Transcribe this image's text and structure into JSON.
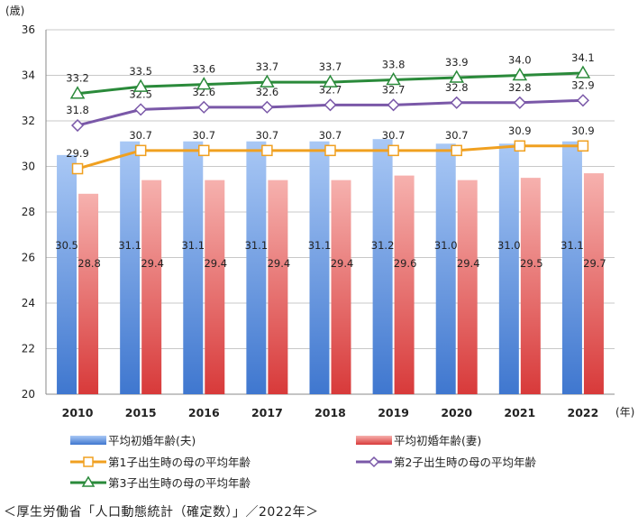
{
  "chart_data": {
    "type": "bar",
    "ylabel": "(歳)",
    "xlabel": "(年)",
    "ylim": [
      20,
      36
    ],
    "yticks": [
      20,
      22,
      24,
      26,
      28,
      30,
      32,
      34,
      36
    ],
    "grid": true,
    "legend_position": "bottom",
    "categories": [
      "2010",
      "2015",
      "2016",
      "2017",
      "2018",
      "2019",
      "2020",
      "2021",
      "2022"
    ],
    "bar_series": [
      {
        "name": "平均初婚年齢(夫)",
        "values": [
          30.5,
          31.1,
          31.1,
          31.1,
          31.1,
          31.2,
          31.0,
          31.0,
          31.1
        ],
        "color": "#5b8fdc",
        "labels": [
          "30.5",
          "31.1",
          "31.1",
          "31.1",
          "31.1",
          "31.2",
          "31.0",
          "31.0",
          "31.1"
        ]
      },
      {
        "name": "平均初婚年齢(妻)",
        "values": [
          28.8,
          29.4,
          29.4,
          29.4,
          29.4,
          29.6,
          29.4,
          29.5,
          29.7
        ],
        "color": "#e46464",
        "labels": [
          "28.8",
          "29.4",
          "29.4",
          "29.4",
          "29.4",
          "29.6",
          "29.4",
          "29.5",
          "29.7"
        ]
      }
    ],
    "line_series": [
      {
        "name": "第1子出生時の母の平均年齢",
        "values": [
          29.9,
          30.7,
          30.7,
          30.7,
          30.7,
          30.7,
          30.7,
          30.9,
          30.9
        ],
        "color": "#f0a020",
        "marker": "square",
        "labels": [
          "29.9",
          "30.7",
          "30.7",
          "30.7",
          "30.7",
          "30.7",
          "30.7",
          "30.9",
          "30.9"
        ]
      },
      {
        "name": "第2子出生時の母の平均年齢",
        "values": [
          31.8,
          32.5,
          32.6,
          32.6,
          32.7,
          32.7,
          32.8,
          32.8,
          32.9
        ],
        "color": "#7a58a8",
        "marker": "diamond",
        "labels": [
          "31.8",
          "32.5",
          "32.6",
          "32.6",
          "32.7",
          "32.7",
          "32.8",
          "32.8",
          "32.9"
        ]
      },
      {
        "name": "第3子出生時の母の平均年齢",
        "values": [
          33.2,
          33.5,
          33.6,
          33.7,
          33.7,
          33.8,
          33.9,
          34.0,
          34.1
        ],
        "color": "#2a8a3a",
        "marker": "triangle",
        "labels": [
          "33.2",
          "33.5",
          "33.6",
          "33.7",
          "33.7",
          "33.8",
          "33.9",
          "34.0",
          "34.1"
        ]
      }
    ]
  },
  "source_text": "＜厚生労働省「人口動態統計（確定数）」／2022年＞"
}
